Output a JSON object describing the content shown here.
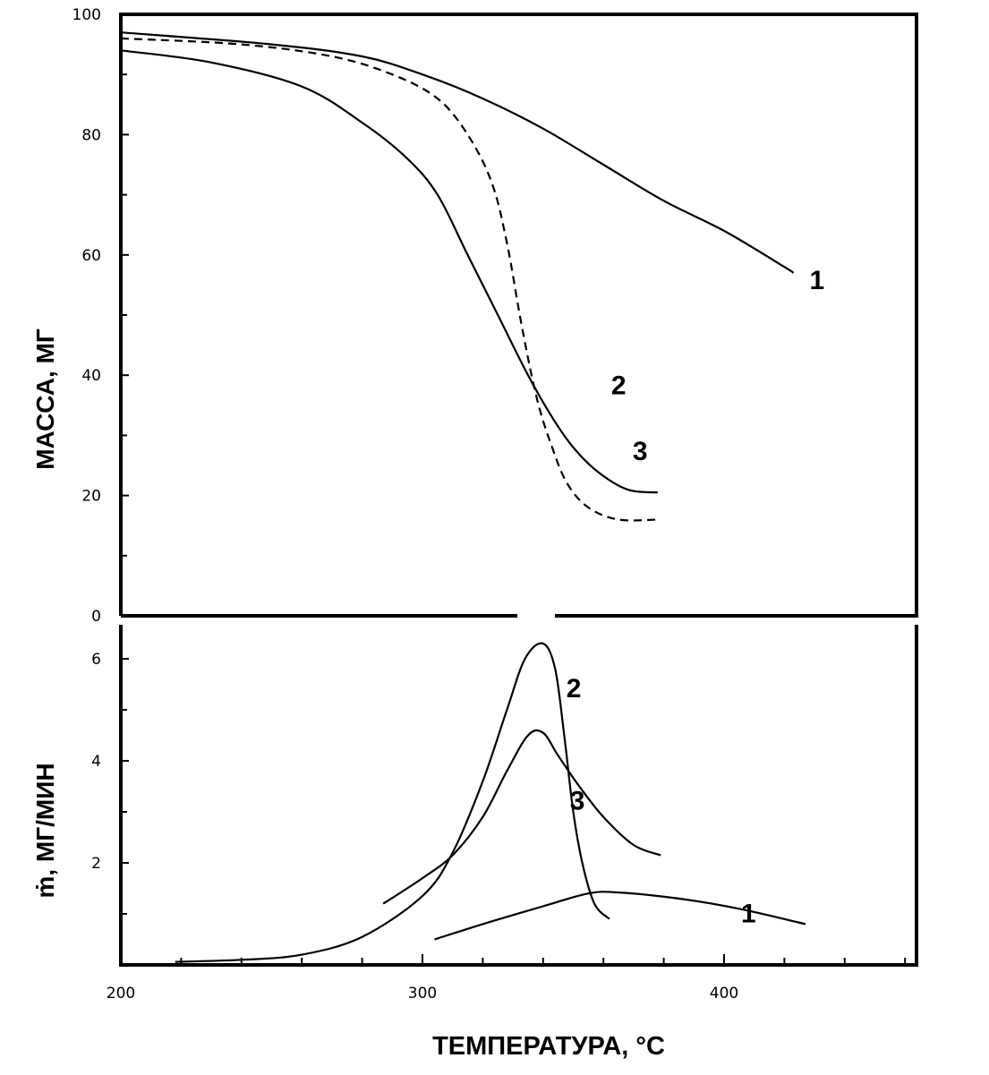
{
  "chart_data": [
    {
      "type": "line",
      "panel": "top",
      "ylabel": "МАССА, МГ",
      "xlabel": "ТЕМПЕРАТУРА, °C",
      "xlim": [
        200,
        465
      ],
      "ylim": [
        0,
        100
      ],
      "x_ticks": [
        200,
        300,
        400
      ],
      "y_ticks": [
        0,
        20,
        40,
        60,
        80,
        100
      ],
      "grid": false,
      "series": [
        {
          "name": "1",
          "style": "solid",
          "points": [
            [
              200,
              97
            ],
            [
              250,
              95
            ],
            [
              280,
              93
            ],
            [
              300,
              90
            ],
            [
              320,
              86
            ],
            [
              340,
              81
            ],
            [
              360,
              75
            ],
            [
              380,
              69
            ],
            [
              400,
              64
            ],
            [
              420,
              58
            ],
            [
              423,
              57
            ]
          ]
        },
        {
          "name": "2",
          "style": "dashed",
          "points": [
            [
              200,
              96
            ],
            [
              240,
              95
            ],
            [
              270,
              93
            ],
            [
              290,
              90
            ],
            [
              305,
              86
            ],
            [
              315,
              80
            ],
            [
              323,
              72
            ],
            [
              328,
              62
            ],
            [
              333,
              48
            ],
            [
              338,
              36
            ],
            [
              343,
              28
            ],
            [
              348,
              22
            ],
            [
              355,
              18
            ],
            [
              365,
              16
            ],
            [
              378,
              16
            ]
          ]
        },
        {
          "name": "3",
          "style": "solid",
          "points": [
            [
              200,
              94
            ],
            [
              230,
              92
            ],
            [
              260,
              88
            ],
            [
              280,
              82
            ],
            [
              295,
              76
            ],
            [
              305,
              70
            ],
            [
              315,
              60
            ],
            [
              325,
              50
            ],
            [
              335,
              40
            ],
            [
              343,
              33
            ],
            [
              350,
              28
            ],
            [
              358,
              24
            ],
            [
              368,
              21
            ],
            [
              378,
              20.5
            ]
          ]
        }
      ]
    },
    {
      "type": "line",
      "panel": "bottom",
      "ylabel": "ṁ, МГ/МИН",
      "xlabel": "ТЕМПЕРАТУРА, °C",
      "xlim": [
        200,
        465
      ],
      "ylim": [
        0,
        6.8
      ],
      "x_ticks": [
        200,
        300,
        400
      ],
      "x_minor_ticks": [
        220,
        240,
        260,
        280,
        320,
        340,
        360,
        380,
        420,
        440,
        460
      ],
      "y_ticks": [
        2,
        4,
        6
      ],
      "y_minor_ticks": [
        1,
        3,
        5
      ],
      "grid": false,
      "series": [
        {
          "name": "1",
          "style": "solid",
          "points": [
            [
              304,
              0.5
            ],
            [
              320,
              0.8
            ],
            [
              340,
              1.15
            ],
            [
              355,
              1.4
            ],
            [
              365,
              1.42
            ],
            [
              385,
              1.3
            ],
            [
              405,
              1.1
            ],
            [
              427,
              0.8
            ]
          ]
        },
        {
          "name": "2",
          "style": "solid",
          "points": [
            [
              218,
              0.06
            ],
            [
              240,
              0.1
            ],
            [
              260,
              0.2
            ],
            [
              280,
              0.55
            ],
            [
              300,
              1.35
            ],
            [
              310,
              2.2
            ],
            [
              320,
              3.6
            ],
            [
              328,
              5.0
            ],
            [
              334,
              6.0
            ],
            [
              340,
              6.3
            ],
            [
              344,
              5.8
            ],
            [
              347,
              4.5
            ],
            [
              350,
              3.0
            ],
            [
              353,
              2.0
            ],
            [
              357,
              1.2
            ],
            [
              362,
              0.9
            ]
          ]
        },
        {
          "name": "3",
          "style": "solid",
          "points": [
            [
              287,
              1.2
            ],
            [
              300,
              1.7
            ],
            [
              310,
              2.15
            ],
            [
              320,
              2.9
            ],
            [
              328,
              3.8
            ],
            [
              335,
              4.5
            ],
            [
              340,
              4.55
            ],
            [
              345,
              4.1
            ],
            [
              352,
              3.5
            ],
            [
              360,
              2.9
            ],
            [
              370,
              2.35
            ],
            [
              379,
              2.15
            ]
          ]
        }
      ]
    }
  ]
}
